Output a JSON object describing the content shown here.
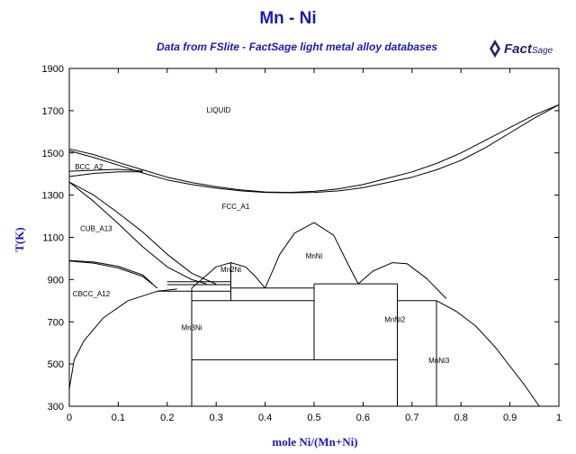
{
  "header": {
    "title": "Mn - Ni",
    "subtitle": "Data from FSlite - FactSage light metal alloy databases",
    "logo_text": "Fact",
    "logo_text_small": "Sage"
  },
  "colors": {
    "title": "#1a1ab4",
    "lines": "#000000",
    "logo": "#23236e"
  },
  "chart_data": {
    "type": "line",
    "title": "Mn - Ni",
    "subtitle": "Data from FSlite - FactSage light metal alloy databases",
    "xlabel": "mole Ni/(Mn+Ni)",
    "ylabel": "T(K)",
    "xlim": [
      0,
      1
    ],
    "ylim": [
      300,
      1900
    ],
    "xticks": [
      0,
      0.1,
      0.2,
      0.3,
      0.4,
      0.5,
      0.6,
      0.7,
      0.8,
      0.9,
      1
    ],
    "xtick_labels": [
      "0",
      "0.1",
      "0.2",
      "0.3",
      "0.4",
      "0.5",
      "0.6",
      "0.7",
      "0.8",
      "0.9",
      "1"
    ],
    "yticks": [
      300,
      500,
      700,
      900,
      1100,
      1300,
      1500,
      1700,
      1900
    ],
    "ytick_labels": [
      "300",
      "500",
      "700",
      "900",
      "1100",
      "1300",
      "1500",
      "1700",
      "1900"
    ],
    "grid": false,
    "series": [
      {
        "x": [
          0,
          0.05,
          0.1,
          0.15,
          0.2,
          0.25,
          0.3,
          0.35,
          0.4,
          0.45,
          0.5,
          0.55,
          0.6,
          0.65,
          0.7,
          0.75,
          0.8,
          0.85,
          0.9,
          0.95,
          1
        ],
        "y": [
          1519,
          1492,
          1455,
          1420,
          1385,
          1360,
          1340,
          1325,
          1315,
          1313,
          1318,
          1330,
          1350,
          1380,
          1410,
          1450,
          1500,
          1560,
          1620,
          1680,
          1728
        ]
      },
      {
        "x": [
          0,
          0.05,
          0.1,
          0.15,
          0.2,
          0.25,
          0.3,
          0.35,
          0.4,
          0.45,
          0.5,
          0.55,
          0.6,
          0.65,
          0.7,
          0.75,
          0.8,
          0.85,
          0.9,
          0.95,
          1
        ],
        "y": [
          1510,
          1478,
          1442,
          1405,
          1372,
          1350,
          1333,
          1320,
          1313,
          1311,
          1313,
          1320,
          1335,
          1360,
          1385,
          1420,
          1465,
          1525,
          1595,
          1665,
          1728
        ]
      },
      {
        "x": [
          0,
          0.05,
          0.1,
          0.15
        ],
        "y": [
          1413,
          1418,
          1422,
          1414
        ]
      },
      {
        "x": [
          0,
          0.05,
          0.1,
          0.15
        ],
        "y": [
          1388,
          1403,
          1410,
          1410
        ]
      },
      {
        "x": [
          0,
          0.05,
          0.1,
          0.15,
          0.2,
          0.25,
          0.28
        ],
        "y": [
          1362,
          1270,
          1165,
          1055,
          960,
          900,
          880
        ]
      },
      {
        "x": [
          0,
          0.05,
          0.1,
          0.15,
          0.2,
          0.25,
          0.3
        ],
        "y": [
          1362,
          1300,
          1215,
          1125,
          1020,
          930,
          878
        ]
      },
      {
        "x": [
          0,
          0.05,
          0.1,
          0.15,
          0.18
        ],
        "y": [
          988,
          978,
          955,
          915,
          860
        ]
      },
      {
        "x": [
          0,
          0.05,
          0.1,
          0.15,
          0.17
        ],
        "y": [
          990,
          983,
          963,
          922,
          880
        ]
      },
      {
        "x": [
          0,
          0.01,
          0.03,
          0.07,
          0.12,
          0.18,
          0.22
        ],
        "y": [
          382,
          520,
          610,
          720,
          800,
          845,
          855
        ]
      },
      {
        "x": [
          0.25,
          0.27,
          0.3,
          0.33,
          0.36,
          0.38,
          0.4
        ],
        "y": [
          860,
          900,
          960,
          980,
          960,
          915,
          860
        ]
      },
      {
        "x": [
          0.4,
          0.43,
          0.46,
          0.5,
          0.54,
          0.57,
          0.59
        ],
        "y": [
          860,
          1020,
          1120,
          1170,
          1110,
          970,
          880
        ]
      },
      {
        "x": [
          0.59,
          0.62,
          0.66,
          0.69,
          0.73,
          0.77
        ],
        "y": [
          880,
          940,
          980,
          975,
          905,
          810
        ]
      },
      {
        "x": [
          0.75,
          0.79,
          0.83,
          0.87,
          0.9,
          0.93,
          0.96
        ],
        "y": [
          800,
          750,
          680,
          580,
          490,
          400,
          300
        ]
      },
      {
        "x": [
          0.2,
          0.33
        ],
        "y": [
          890,
          890
        ]
      },
      {
        "x": [
          0.2,
          0.33
        ],
        "y": [
          876,
          876
        ]
      },
      {
        "x": [
          0.18,
          0.33
        ],
        "y": [
          845,
          845
        ]
      },
      {
        "x": [
          0.33,
          0.5
        ],
        "y": [
          860,
          860
        ]
      },
      {
        "x": [
          0.5,
          0.67
        ],
        "y": [
          880,
          880
        ]
      },
      {
        "x": [
          0.25,
          0.5
        ],
        "y": [
          800,
          800
        ]
      },
      {
        "x": [
          0.67,
          0.75
        ],
        "y": [
          800,
          800
        ]
      },
      {
        "x": [
          0.25,
          0.67
        ],
        "y": [
          520,
          520
        ]
      },
      {
        "x": [
          0.25,
          0.25
        ],
        "y": [
          300,
          860
        ]
      },
      {
        "x": [
          0.33,
          0.33
        ],
        "y": [
          800,
          980
        ]
      },
      {
        "x": [
          0.5,
          0.5
        ],
        "y": [
          520,
          880
        ]
      },
      {
        "x": [
          0.67,
          0.67
        ],
        "y": [
          300,
          880
        ]
      },
      {
        "x": [
          0.75,
          0.75
        ],
        "y": [
          300,
          800
        ]
      }
    ],
    "annotations": [
      {
        "text": "LIQUID",
        "x": 0.305,
        "y": 1690
      },
      {
        "text": "BCC_A2",
        "x": 0.04,
        "y": 1422
      },
      {
        "text": "FCC_A1",
        "x": 0.34,
        "y": 1235
      },
      {
        "text": "CUB_A13",
        "x": 0.055,
        "y": 1130
      },
      {
        "text": "CBCC_A12",
        "x": 0.045,
        "y": 820
      },
      {
        "text": "Mn2Ni",
        "x": 0.33,
        "y": 935
      },
      {
        "text": "MnNi",
        "x": 0.5,
        "y": 1000
      },
      {
        "text": "Mn3Ni",
        "x": 0.25,
        "y": 660
      },
      {
        "text": "MnNi2",
        "x": 0.665,
        "y": 700
      },
      {
        "text": "MnNi3",
        "x": 0.755,
        "y": 505
      }
    ]
  }
}
